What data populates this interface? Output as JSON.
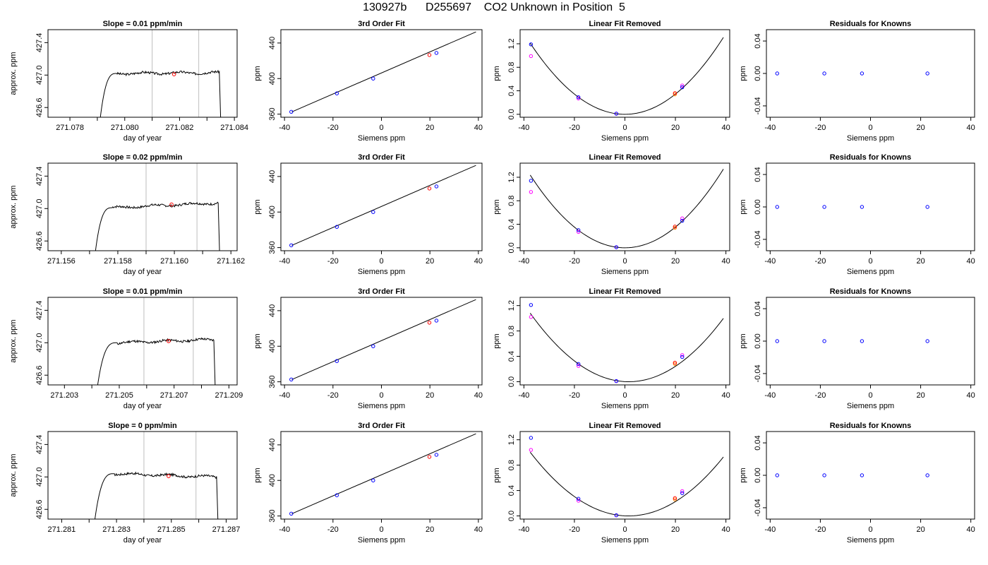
{
  "figure_title": "130927b      D255697    CO2 Unknown in Position  5",
  "colors": {
    "line": "#000000",
    "gridline": "#bebebe",
    "unknown_marker": "#ff0000",
    "known_marker": "#0000ff",
    "alt_marker": "#ff00ff",
    "orange_marker": "#ff8c00"
  },
  "chart_data": [
    {
      "row": 1,
      "col": 1,
      "type": "line",
      "title": "Slope =  0.01  ppm/min",
      "xlabel": "day of year",
      "ylabel": "approx. ppm",
      "xlim": [
        271.0772,
        271.0841
      ],
      "ylim": [
        426.48,
        427.56
      ],
      "xticks": [
        "271.078",
        "271.080",
        "271.082",
        "271.084"
      ],
      "xtick_values": [
        271.078,
        271.08,
        271.082,
        271.084
      ],
      "xminor_values": [
        271.079,
        271.081,
        271.083
      ],
      "yticks": [
        "426.6",
        "427.0",
        "427.4"
      ],
      "ytick_values": [
        426.6,
        427.0,
        427.4
      ],
      "vlines": [
        271.081,
        271.0827
      ],
      "trace": {
        "x_start": 271.0791,
        "x_rise_end": 271.0797,
        "x_drop": 271.08345,
        "x_end": 271.0835,
        "start_y": 426.45,
        "plateau": 427.02,
        "drift": 0.01,
        "seed": 3
      },
      "marker": {
        "x": 271.0818,
        "y": 427.01
      }
    },
    {
      "row": 2,
      "col": 1,
      "type": "line",
      "title": "Slope =  0.02  ppm/min",
      "xlabel": "day of year",
      "ylabel": "approx. ppm",
      "xlim": [
        271.15553,
        271.16222
      ],
      "ylim": [
        426.48,
        427.56
      ],
      "xticks": [
        "271.156",
        "271.158",
        "271.160",
        "271.162"
      ],
      "xtick_values": [
        271.156,
        271.158,
        271.16,
        271.162
      ],
      "xminor_values": [
        271.157,
        271.159,
        271.161
      ],
      "yticks": [
        "426.6",
        "427.0",
        "427.4"
      ],
      "ytick_values": [
        426.6,
        427.0,
        427.4
      ],
      "vlines": [
        271.159,
        271.1608
      ],
      "trace": {
        "x_start": 271.1572,
        "x_rise_end": 271.1578,
        "x_drop": 271.16155,
        "x_end": 271.1616,
        "start_y": 426.45,
        "plateau": 427.01,
        "drift": 0.06,
        "seed": 7
      },
      "marker": {
        "x": 271.1599,
        "y": 427.05
      }
    },
    {
      "row": 3,
      "col": 1,
      "type": "line",
      "title": "Slope =  0.01  ppm/min",
      "xlabel": "day of year",
      "ylabel": "approx. ppm",
      "xlim": [
        271.2024,
        271.2093
      ],
      "ylim": [
        426.48,
        427.56
      ],
      "xticks": [
        "271.203",
        "271.205",
        "271.207",
        "271.209"
      ],
      "xtick_values": [
        271.203,
        271.205,
        271.207,
        271.209
      ],
      "xminor_values": [
        271.204,
        271.206,
        271.208
      ],
      "yticks": [
        "426.6",
        "427.0",
        "427.4"
      ],
      "ytick_values": [
        426.6,
        427.0,
        427.4
      ],
      "vlines": [
        271.2059,
        271.2077
      ],
      "trace": {
        "x_start": 271.2042,
        "x_rise_end": 271.2049,
        "x_drop": 271.20845,
        "x_end": 271.2085,
        "start_y": 426.45,
        "plateau": 427.0,
        "drift": 0.04,
        "seed": 11
      },
      "marker": {
        "x": 271.2068,
        "y": 427.02
      }
    },
    {
      "row": 4,
      "col": 1,
      "type": "line",
      "title": "Slope =  0  ppm/min",
      "xlabel": "day of year",
      "ylabel": "approx. ppm",
      "xlim": [
        271.2805,
        271.2874
      ],
      "ylim": [
        426.48,
        427.56
      ],
      "xticks": [
        "271.281",
        "271.283",
        "271.285",
        "271.287"
      ],
      "xtick_values": [
        271.281,
        271.283,
        271.285,
        271.287
      ],
      "xminor_values": [
        271.282,
        271.284,
        271.286
      ],
      "yticks": [
        "426.6",
        "427.0",
        "427.4"
      ],
      "ytick_values": [
        426.6,
        427.0,
        427.4
      ],
      "vlines": [
        271.284,
        271.2859
      ],
      "trace": {
        "x_start": 271.2822,
        "x_rise_end": 271.2829,
        "x_drop": 271.28665,
        "x_end": 271.2867,
        "start_y": 426.45,
        "plateau": 427.04,
        "drift": -0.04,
        "seed": 17
      },
      "marker": {
        "x": 271.2849,
        "y": 427.01
      }
    },
    {
      "row": 1,
      "col": 2,
      "type": "scatter",
      "title": "3rd Order Fit",
      "xlabel": "Siemens ppm",
      "ylabel": "ppm",
      "xlim": [
        -41.5,
        41.5
      ],
      "ylim": [
        356.5,
        455
      ],
      "xticks": [
        "-40",
        "-20",
        "0",
        "20",
        "40"
      ],
      "xtick_values": [
        -40,
        -20,
        0,
        20,
        40
      ],
      "yticks": [
        "360",
        "400",
        "440"
      ],
      "ytick_values": [
        360,
        400,
        440
      ],
      "fit_line": {
        "x": [
          -37,
          39
        ],
        "y": [
          362.5,
          452.5
        ]
      },
      "known_points": {
        "x": [
          -37.2,
          -18.4,
          -3.4,
          22.7
        ],
        "y": [
          362.6,
          383.3,
          400.0,
          428.8
        ]
      },
      "unknown_points": {
        "x": [
          19.8
        ],
        "y": [
          426.5
        ]
      }
    },
    {
      "row": 2,
      "col": 2,
      "type": "scatter",
      "title": "3rd Order Fit",
      "xlabel": "Siemens ppm",
      "ylabel": "ppm",
      "xlim": [
        -41.5,
        41.5
      ],
      "ylim": [
        356.5,
        455
      ],
      "xticks": [
        "-40",
        "-20",
        "0",
        "20",
        "40"
      ],
      "xtick_values": [
        -40,
        -20,
        0,
        20,
        40
      ],
      "yticks": [
        "360",
        "400",
        "440"
      ],
      "ytick_values": [
        360,
        400,
        440
      ],
      "fit_line": {
        "x": [
          -37,
          39
        ],
        "y": [
          362.5,
          452.5
        ]
      },
      "known_points": {
        "x": [
          -37.2,
          -18.4,
          -3.4,
          22.7
        ],
        "y": [
          362.6,
          383.3,
          400.0,
          428.8
        ]
      },
      "unknown_points": {
        "x": [
          19.8
        ],
        "y": [
          426.5
        ]
      }
    },
    {
      "row": 3,
      "col": 2,
      "type": "scatter",
      "title": "3rd Order Fit",
      "xlabel": "Siemens ppm",
      "ylabel": "ppm",
      "xlim": [
        -41.5,
        41.5
      ],
      "ylim": [
        356.5,
        455
      ],
      "xticks": [
        "-40",
        "-20",
        "0",
        "20",
        "40"
      ],
      "xtick_values": [
        -40,
        -20,
        0,
        20,
        40
      ],
      "yticks": [
        "360",
        "400",
        "440"
      ],
      "ytick_values": [
        360,
        400,
        440
      ],
      "fit_line": {
        "x": [
          -37,
          39
        ],
        "y": [
          362.5,
          452.5
        ]
      },
      "known_points": {
        "x": [
          -37.2,
          -18.4,
          -3.4,
          22.7
        ],
        "y": [
          362.6,
          383.3,
          400.0,
          428.8
        ]
      },
      "unknown_points": {
        "x": [
          19.8
        ],
        "y": [
          426.5
        ]
      }
    },
    {
      "row": 4,
      "col": 2,
      "type": "scatter",
      "title": "3rd Order Fit",
      "xlabel": "Siemens ppm",
      "ylabel": "ppm",
      "xlim": [
        -41.5,
        41.5
      ],
      "ylim": [
        356.5,
        455
      ],
      "xticks": [
        "-40",
        "-20",
        "0",
        "20",
        "40"
      ],
      "xtick_values": [
        -40,
        -20,
        0,
        20,
        40
      ],
      "yticks": [
        "360",
        "400",
        "440"
      ],
      "ytick_values": [
        360,
        400,
        440
      ],
      "fit_line": {
        "x": [
          -37,
          39
        ],
        "y": [
          362.5,
          452.5
        ]
      },
      "known_points": {
        "x": [
          -37.2,
          -18.4,
          -3.4,
          22.7
        ],
        "y": [
          362.6,
          383.3,
          400.0,
          428.8
        ]
      },
      "unknown_points": {
        "x": [
          19.8
        ],
        "y": [
          426.5
        ]
      }
    },
    {
      "row": 1,
      "col": 3,
      "type": "scatter",
      "title": "Linear Fit Removed",
      "xlabel": "Siemens ppm",
      "ylabel": "ppm",
      "xlim": [
        -41.5,
        41.5
      ],
      "ylim": [
        -0.05,
        1.44
      ],
      "xticks": [
        "-40",
        "-20",
        "0",
        "20",
        "40"
      ],
      "xtick_values": [
        -40,
        -20,
        0,
        20,
        40
      ],
      "yticks": [
        "0.0",
        "0.4",
        "0.8",
        "1.2"
      ],
      "ytick_values": [
        0.0,
        0.4,
        0.8,
        1.2
      ],
      "curve": {
        "x_min": -37.5,
        "x_max": 39.0,
        "a": 0.00086,
        "x0": 0.0,
        "y0": 0.0
      },
      "known_points": {
        "x": [
          -37.2,
          -18.4,
          -3.4,
          22.7
        ],
        "y": [
          1.19,
          0.29,
          0.01,
          0.46
        ]
      },
      "alt_points": {
        "x": [
          -37.2,
          -18.4,
          -3.4,
          22.7
        ],
        "y": [
          0.99,
          0.27,
          0.01,
          0.49
        ]
      },
      "unknown_points": {
        "x": [
          19.8
        ],
        "y": [
          0.36
        ]
      },
      "orange_points": {
        "x": [
          19.8
        ],
        "y": [
          0.34
        ]
      }
    },
    {
      "row": 2,
      "col": 3,
      "type": "scatter",
      "title": "Linear Fit Removed",
      "xlabel": "Siemens ppm",
      "ylabel": "ppm",
      "xlim": [
        -41.5,
        41.5
      ],
      "ylim": [
        -0.05,
        1.44
      ],
      "xticks": [
        "-40",
        "-20",
        "0",
        "20",
        "40"
      ],
      "xtick_values": [
        -40,
        -20,
        0,
        20,
        40
      ],
      "yticks": [
        "0.0",
        "0.4",
        "0.8",
        "1.2"
      ],
      "ytick_values": [
        0.0,
        0.4,
        0.8,
        1.2
      ],
      "curve": {
        "x_min": -37.5,
        "x_max": 39.0,
        "a": 0.00088,
        "x0": 0.0,
        "y0": 0.0
      },
      "known_points": {
        "x": [
          -37.2,
          -18.4,
          -3.4,
          22.7
        ],
        "y": [
          1.14,
          0.3,
          0.01,
          0.46
        ]
      },
      "alt_points": {
        "x": [
          -37.2,
          -18.4,
          -3.4,
          22.7
        ],
        "y": [
          0.95,
          0.27,
          0.01,
          0.5
        ]
      },
      "unknown_points": {
        "x": [
          19.8
        ],
        "y": [
          0.36
        ]
      },
      "orange_points": {
        "x": [
          19.8
        ],
        "y": [
          0.34
        ]
      }
    },
    {
      "row": 3,
      "col": 3,
      "type": "scatter",
      "title": "Linear Fit Removed",
      "xlabel": "Siemens ppm",
      "ylabel": "ppm",
      "xlim": [
        -41.5,
        41.5
      ],
      "ylim": [
        -0.05,
        1.33
      ],
      "xticks": [
        "-40",
        "-20",
        "0",
        "20",
        "40"
      ],
      "xtick_values": [
        -40,
        -20,
        0,
        20,
        40
      ],
      "yticks": [
        "0.0",
        "0.4",
        "0.8",
        "1.2"
      ],
      "ytick_values": [
        0.0,
        0.4,
        0.8,
        1.2
      ],
      "curve": {
        "x_min": -37.5,
        "x_max": 39.0,
        "a": 0.00071,
        "x0": 1.5,
        "y0": 0.0
      },
      "known_points": {
        "x": [
          -37.2,
          -18.4,
          -3.4,
          22.7
        ],
        "y": [
          1.21,
          0.28,
          0.01,
          0.39
        ]
      },
      "alt_points": {
        "x": [
          -37.2,
          -18.4,
          -3.4,
          22.7
        ],
        "y": [
          1.02,
          0.25,
          0.01,
          0.42
        ]
      },
      "unknown_points": {
        "x": [
          19.8
        ],
        "y": [
          0.3
        ]
      },
      "orange_points": {
        "x": [
          19.8
        ],
        "y": [
          0.28
        ]
      }
    },
    {
      "row": 4,
      "col": 3,
      "type": "scatter",
      "title": "Linear Fit Removed",
      "xlabel": "Siemens ppm",
      "ylabel": "ppm",
      "xlim": [
        -41.5,
        41.5
      ],
      "ylim": [
        -0.05,
        1.33
      ],
      "xticks": [
        "-40",
        "-20",
        "0",
        "20",
        "40"
      ],
      "xtick_values": [
        -40,
        -20,
        0,
        20,
        40
      ],
      "yticks": [
        "0.0",
        "0.4",
        "0.8",
        "1.2"
      ],
      "ytick_values": [
        0.0,
        0.4,
        0.8,
        1.2
      ],
      "curve": {
        "x_min": -37.5,
        "x_max": 39.0,
        "a": 0.00066,
        "x0": 1.5,
        "y0": 0.0
      },
      "known_points": {
        "x": [
          -37.2,
          -18.4,
          -3.4,
          22.7
        ],
        "y": [
          1.23,
          0.27,
          0.01,
          0.36
        ]
      },
      "alt_points": {
        "x": [
          -37.2,
          -18.4,
          -3.4,
          22.7
        ],
        "y": [
          1.04,
          0.24,
          0.01,
          0.39
        ]
      },
      "unknown_points": {
        "x": [
          19.8
        ],
        "y": [
          0.28
        ]
      },
      "orange_points": {
        "x": [
          19.8
        ],
        "y": [
          0.26
        ]
      }
    },
    {
      "row": 1,
      "col": 4,
      "type": "scatter",
      "title": "Residuals for Knowns",
      "xlabel": "Siemens ppm",
      "ylabel": "ppm",
      "xlim": [
        -41.5,
        41.5
      ],
      "ylim": [
        -0.054,
        0.054
      ],
      "xticks": [
        "-40",
        "-20",
        "0",
        "20",
        "40"
      ],
      "xtick_values": [
        -40,
        -20,
        0,
        20,
        40
      ],
      "yticks": [
        "-0.04",
        "0.00",
        "0.04"
      ],
      "ytick_values": [
        -0.04,
        0.0,
        0.04
      ],
      "known_points": {
        "x": [
          -37.2,
          -18.4,
          -3.4,
          22.7
        ],
        "y": [
          0.0,
          0.0,
          0.0,
          0.0
        ]
      }
    },
    {
      "row": 2,
      "col": 4,
      "type": "scatter",
      "title": "Residuals for Knowns",
      "xlabel": "Siemens ppm",
      "ylabel": "ppm",
      "xlim": [
        -41.5,
        41.5
      ],
      "ylim": [
        -0.054,
        0.054
      ],
      "xticks": [
        "-40",
        "-20",
        "0",
        "20",
        "40"
      ],
      "xtick_values": [
        -40,
        -20,
        0,
        20,
        40
      ],
      "yticks": [
        "-0.04",
        "0.00",
        "0.04"
      ],
      "ytick_values": [
        -0.04,
        0.0,
        0.04
      ],
      "known_points": {
        "x": [
          -37.2,
          -18.4,
          -3.4,
          22.7
        ],
        "y": [
          0.0,
          0.0,
          0.0,
          0.0
        ]
      }
    },
    {
      "row": 3,
      "col": 4,
      "type": "scatter",
      "title": "Residuals for Knowns",
      "xlabel": "Siemens ppm",
      "ylabel": "ppm",
      "xlim": [
        -41.5,
        41.5
      ],
      "ylim": [
        -0.054,
        0.054
      ],
      "xticks": [
        "-40",
        "-20",
        "0",
        "20",
        "40"
      ],
      "xtick_values": [
        -40,
        -20,
        0,
        20,
        40
      ],
      "yticks": [
        "-0.04",
        "0.00",
        "0.04"
      ],
      "ytick_values": [
        -0.04,
        0.0,
        0.04
      ],
      "known_points": {
        "x": [
          -37.2,
          -18.4,
          -3.4,
          22.7
        ],
        "y": [
          0.0,
          0.0,
          0.0,
          0.0
        ]
      }
    },
    {
      "row": 4,
      "col": 4,
      "type": "scatter",
      "title": "Residuals for Knowns",
      "xlabel": "Siemens ppm",
      "ylabel": "ppm",
      "xlim": [
        -41.5,
        41.5
      ],
      "ylim": [
        -0.054,
        0.054
      ],
      "xticks": [
        "-40",
        "-20",
        "0",
        "20",
        "40"
      ],
      "xtick_values": [
        -40,
        -20,
        0,
        20,
        40
      ],
      "yticks": [
        "-0.04",
        "0.00",
        "0.04"
      ],
      "ytick_values": [
        -0.04,
        0.0,
        0.04
      ],
      "known_points": {
        "x": [
          -37.2,
          -18.4,
          -3.4,
          22.7
        ],
        "y": [
          0.0,
          0.0,
          0.0,
          0.0
        ]
      }
    }
  ]
}
